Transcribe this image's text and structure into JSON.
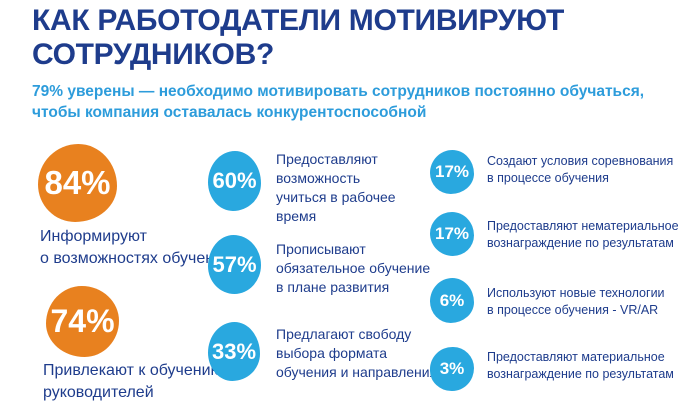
{
  "header": {
    "title": "КАК РАБОТОДАТЕЛИ МОТИВИРУЮТ\nСОТРУДНИКОВ?",
    "subtitle": "79% уверены — необходимо мотивировать сотрудников постоянно обучаться,\nчтобы компания оставалась конкурентоспособной"
  },
  "colors": {
    "orange": "#E8811F",
    "blue": "#29A8DF",
    "navy": "#1E3C8C",
    "light_blue_text": "#2D9CDB"
  },
  "stats": {
    "left": [
      {
        "pct": "84%",
        "label": "Информируют\nо возможностях обучения"
      },
      {
        "pct": "74%",
        "label": "Привлекают к обучению\nруководителей"
      }
    ],
    "middle": [
      {
        "pct": "60%",
        "label": "Предоставляют\nвозможность\nучиться в рабочее\nвремя"
      },
      {
        "pct": "57%",
        "label": "Прописывают\nобязательное обучение\nв плане развития"
      },
      {
        "pct": "33%",
        "label": "Предлагают свободу\nвыбора формата\nобучения и направления"
      }
    ],
    "right": [
      {
        "pct": "17%",
        "label": "Создают условия соревнования\nв процессе обучения"
      },
      {
        "pct": "17%",
        "label": "Предоставляют нематериальное\nвознаграждение по результатам"
      },
      {
        "pct": "6%",
        "label": "Используют новые технологии\nв процессе обучения - VR/AR"
      },
      {
        "pct": "3%",
        "label": "Предоставляют материальное\nвознаграждение по результатам"
      }
    ]
  },
  "chart_data": {
    "type": "bar",
    "visual_style": "proportional-circle infographic",
    "title": "КАК РАБОТОДАТЕЛИ МОТИВИРУЮТ СОТРУДНИКОВ?",
    "subtitle": "79% уверены — необходимо мотивировать сотрудников постоянно обучаться, чтобы компания оставалась конкурентоспособной",
    "categories": [
      "Информируют о возможностях обучения",
      "Привлекают к обучению руководителей",
      "Предоставляют возможность учиться в рабочее время",
      "Прописывают обязательное обучение в плане развития",
      "Предлагают свободу выбора формата обучения и направления",
      "Создают условия соревнования в процессе обучения",
      "Предоставляют нематериальное вознаграждение по результатам",
      "Используют новые технологии в процессе обучения - VR/AR",
      "Предоставляют материальное вознаграждение по результатам"
    ],
    "values": [
      84,
      74,
      60,
      57,
      33,
      17,
      17,
      6,
      3
    ],
    "unit": "%",
    "series_colors": [
      "#E8811F",
      "#E8811F",
      "#29A8DF",
      "#29A8DF",
      "#29A8DF",
      "#29A8DF",
      "#29A8DF",
      "#29A8DF",
      "#29A8DF"
    ],
    "legend_position": "none",
    "grid": false
  }
}
